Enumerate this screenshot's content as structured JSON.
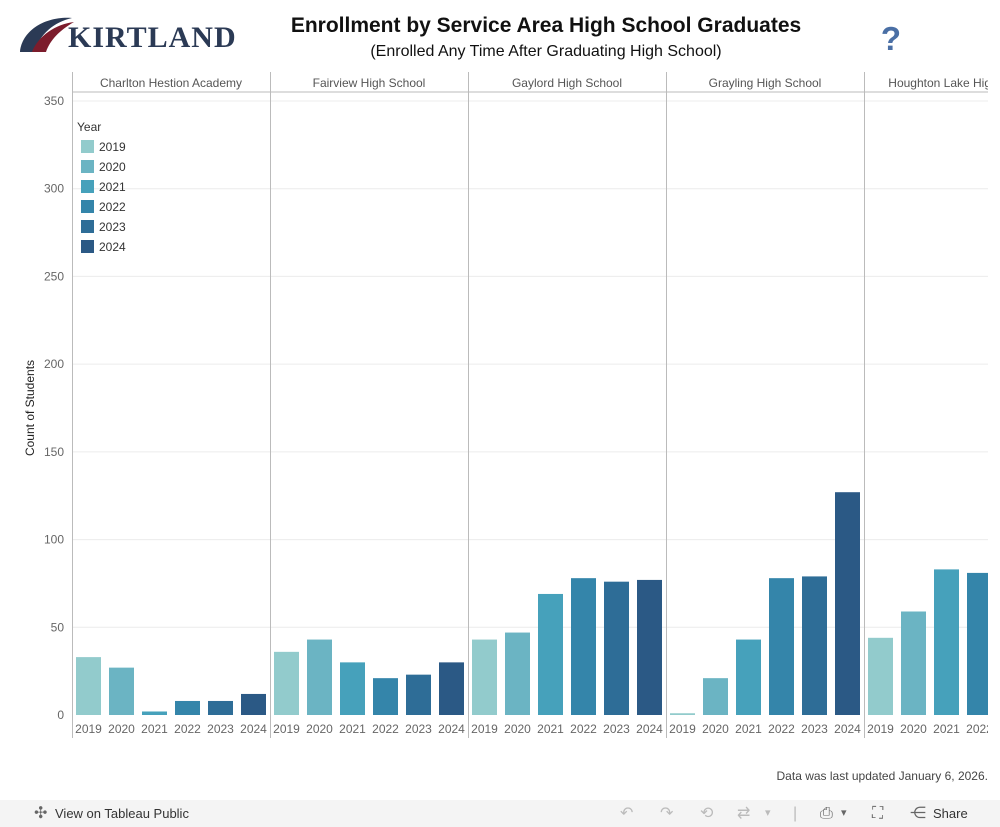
{
  "header": {
    "logo_text": "KIRTLAND",
    "title": "Enrollment by Service Area High School Graduates",
    "subtitle": "(Enrolled Any Time After Graduating High School)",
    "help_label": "?"
  },
  "colors": {
    "2019": "#92cbcc",
    "2020": "#6bb4c3",
    "2021": "#46a1bb",
    "2022": "#3485aa",
    "2023": "#2e6d97",
    "2024": "#2b5985",
    "logo_navy": "#2b3a55",
    "logo_maroon": "#7c1c2c"
  },
  "chart_data": {
    "type": "bar",
    "title": "Enrollment by Service Area High School Graduates",
    "ylabel": "Count of Students",
    "xlabel": "",
    "ylim": [
      0,
      350
    ],
    "yticks": [
      0,
      50,
      100,
      150,
      200,
      250,
      300,
      350
    ],
    "grid": true,
    "legend_title": "Year",
    "legend_position": "top-left",
    "categories": [
      "2019",
      "2020",
      "2021",
      "2022",
      "2023",
      "2024"
    ],
    "panels": [
      {
        "school": "Charlton Hestion Academy",
        "values": [
          33,
          27,
          2,
          8,
          8,
          12
        ]
      },
      {
        "school": "Fairview High School",
        "values": [
          36,
          43,
          30,
          21,
          23,
          30
        ]
      },
      {
        "school": "Gaylord High School",
        "values": [
          43,
          47,
          69,
          78,
          76,
          77
        ]
      },
      {
        "school": "Grayling High School",
        "values": [
          1,
          21,
          43,
          78,
          79,
          127
        ]
      },
      {
        "school": "Houghton Lake High School",
        "values": [
          44,
          59,
          83,
          81,
          null,
          null
        ]
      }
    ]
  },
  "footer": {
    "updated_note": "Data was last updated January 6, 2026.",
    "view_label": "View on Tableau Public",
    "share_label": "Share"
  }
}
